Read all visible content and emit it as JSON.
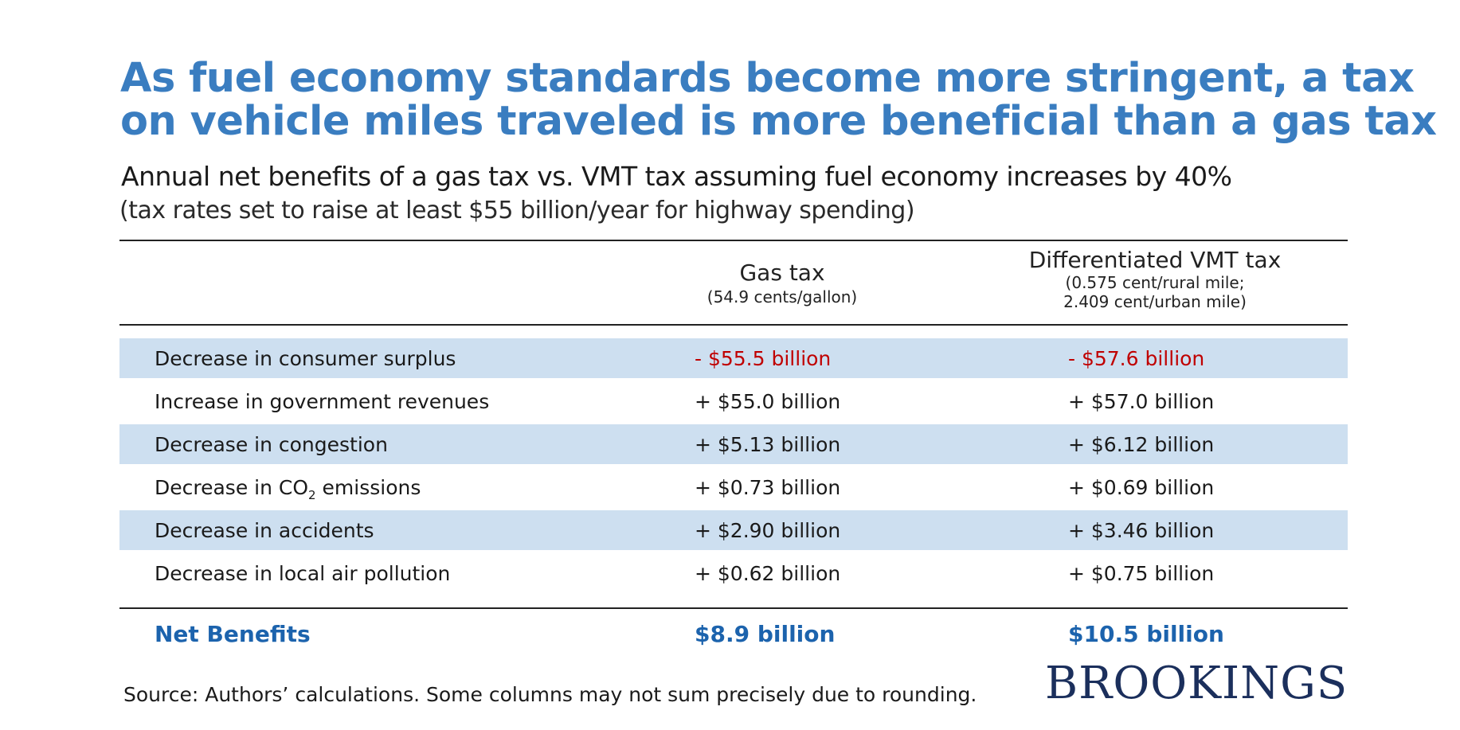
{
  "title": [
    "As fuel economy standards become more stringent, a tax",
    "on vehicle miles traveled is more beneficial than a gas tax"
  ],
  "subtitle": "Annual net benefits of a gas tax vs. VMT tax assuming fuel economy increases by 40%",
  "subtitle_note": "(tax rates set to raise at least $55 billion/year for highway spending)",
  "chart_data": {
    "type": "table",
    "columns": [
      {
        "name": "Gas tax",
        "note": [
          "(54.9 cents/gallon)"
        ]
      },
      {
        "name": "Differentiated VMT tax",
        "note": [
          "(0.575 cent/rural mile;",
          "2.409 cent/urban mile)"
        ]
      }
    ],
    "rows": [
      {
        "label": "Decrease in consumer surplus",
        "values": [
          "- $55.5 billion",
          "- $57.6 billion"
        ],
        "numeric": [
          -55.5,
          -57.6
        ]
      },
      {
        "label": "Increase in government revenues",
        "values": [
          "+ $55.0 billion",
          "+ $57.0 billion"
        ],
        "numeric": [
          55.0,
          57.0
        ]
      },
      {
        "label": "Decrease in congestion",
        "values": [
          "+ $5.13 billion",
          "+ $6.12 billion"
        ],
        "numeric": [
          5.13,
          6.12
        ]
      },
      {
        "label_pre": "Decrease in CO",
        "label_sub": "2",
        "label_post": " emissions",
        "label": "Decrease in CO2 emissions",
        "values": [
          "+ $0.73 billion",
          "+ $0.69 billion"
        ],
        "numeric": [
          0.73,
          0.69
        ]
      },
      {
        "label": "Decrease in accidents",
        "values": [
          "+ $2.90 billion",
          "+ $3.46 billion"
        ],
        "numeric": [
          2.9,
          3.46
        ]
      },
      {
        "label": "Decrease in local air pollution",
        "values": [
          "+ $0.62 billion",
          "+ $0.75 billion"
        ],
        "numeric": [
          0.62,
          0.75
        ]
      }
    ],
    "total": {
      "label": "Net Benefits",
      "values": [
        "$8.9 billion",
        "$10.5 billion"
      ],
      "numeric": [
        8.9,
        10.5
      ]
    }
  },
  "source": "Source: Authors’ calculations. Some columns may not sum precisely due to rounding.",
  "logo": "BROOKINGS",
  "colors": {
    "title": "#3a7dc0",
    "negative": "#c00000",
    "band": "#cddff0",
    "total": "#1c63ad"
  }
}
